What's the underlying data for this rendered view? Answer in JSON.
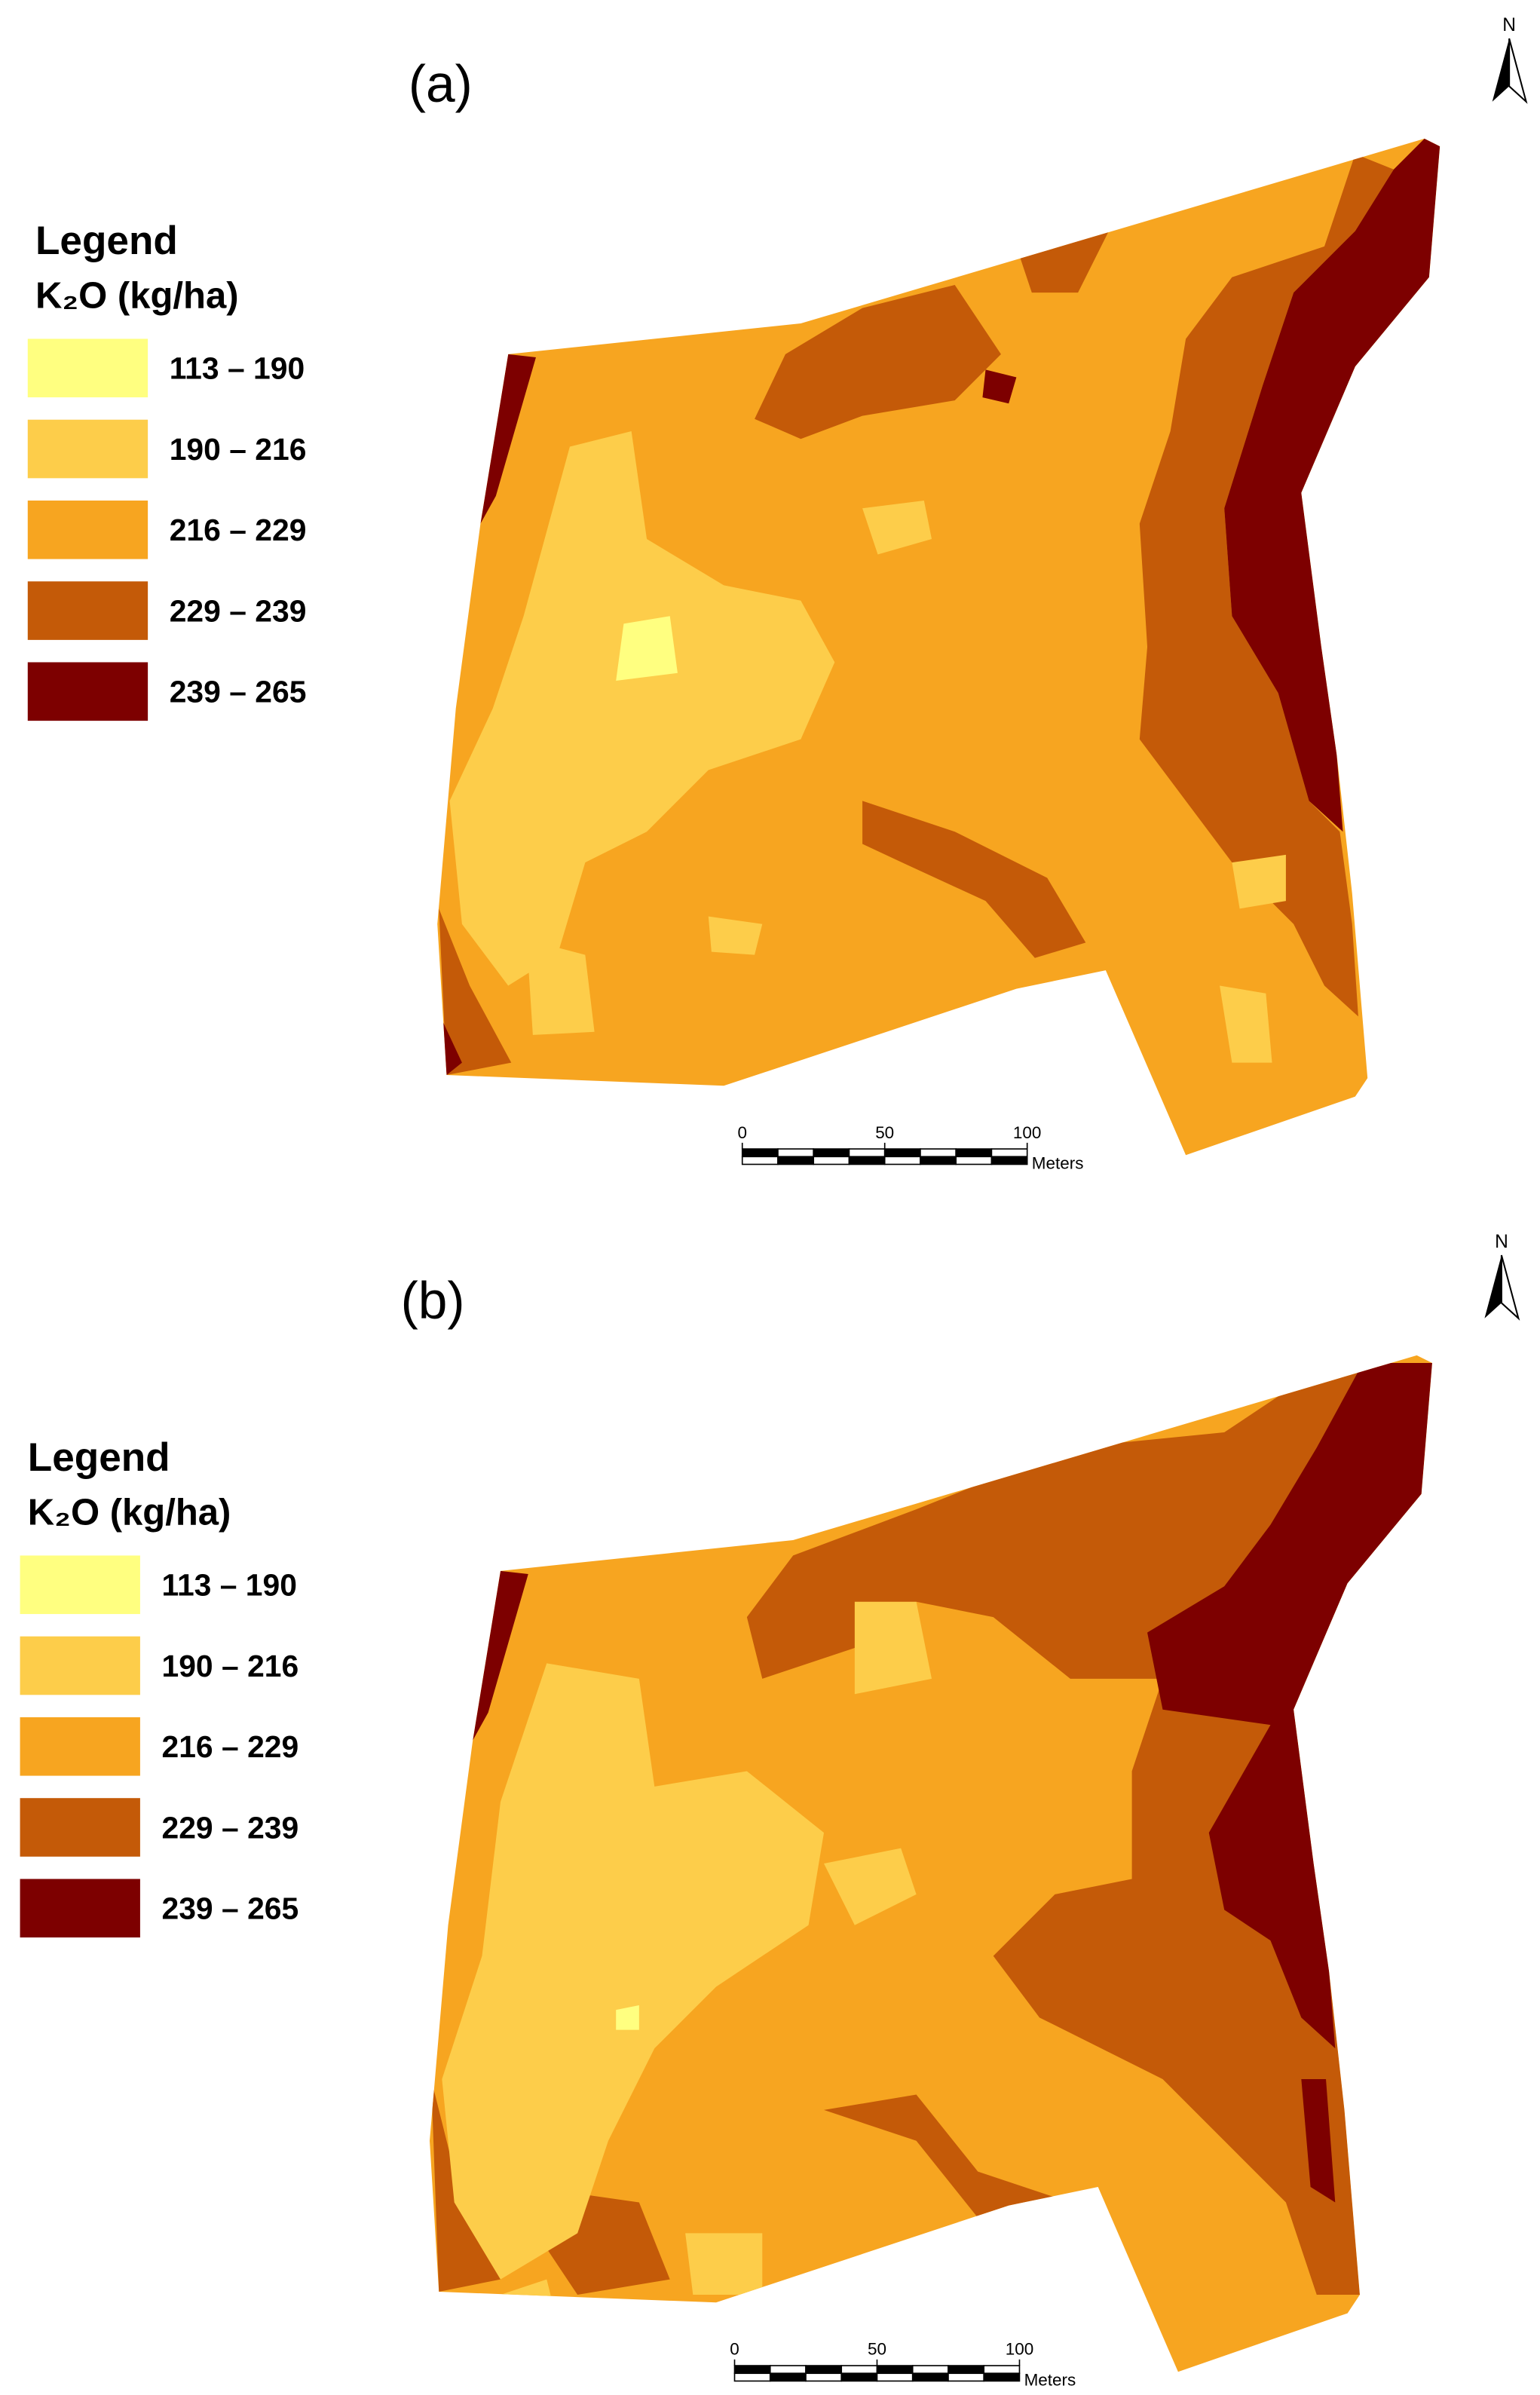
{
  "panels": [
    {
      "label": "(a)",
      "legend": {
        "title": "Legend",
        "subtitle": "K₂O (kg/ha)",
        "classes": [
          {
            "label": "113 – 190",
            "color": "#ffff80"
          },
          {
            "label": "190 – 216",
            "color": "#fdcd4a"
          },
          {
            "label": "216 – 229",
            "color": "#f7a520"
          },
          {
            "label": "229 – 239",
            "color": "#c45a08"
          },
          {
            "label": "239 – 265",
            "color": "#7d0000"
          }
        ]
      },
      "scale_bar": {
        "ticks": [
          0,
          50,
          100
        ],
        "unit": "Meters"
      },
      "north": "N"
    },
    {
      "label": "(b)",
      "legend": {
        "title": "Legend",
        "subtitle": "K₂O (kg/ha)",
        "classes": [
          {
            "label": "113 – 190",
            "color": "#ffff80"
          },
          {
            "label": "190 – 216",
            "color": "#fdcd4a"
          },
          {
            "label": "216 – 229",
            "color": "#f7a520"
          },
          {
            "label": "229 – 239",
            "color": "#c45a08"
          },
          {
            "label": "239 – 265",
            "color": "#7d0000"
          }
        ]
      },
      "scale_bar": {
        "ticks": [
          0,
          50,
          100
        ],
        "unit": "Meters"
      },
      "north": "N"
    }
  ]
}
